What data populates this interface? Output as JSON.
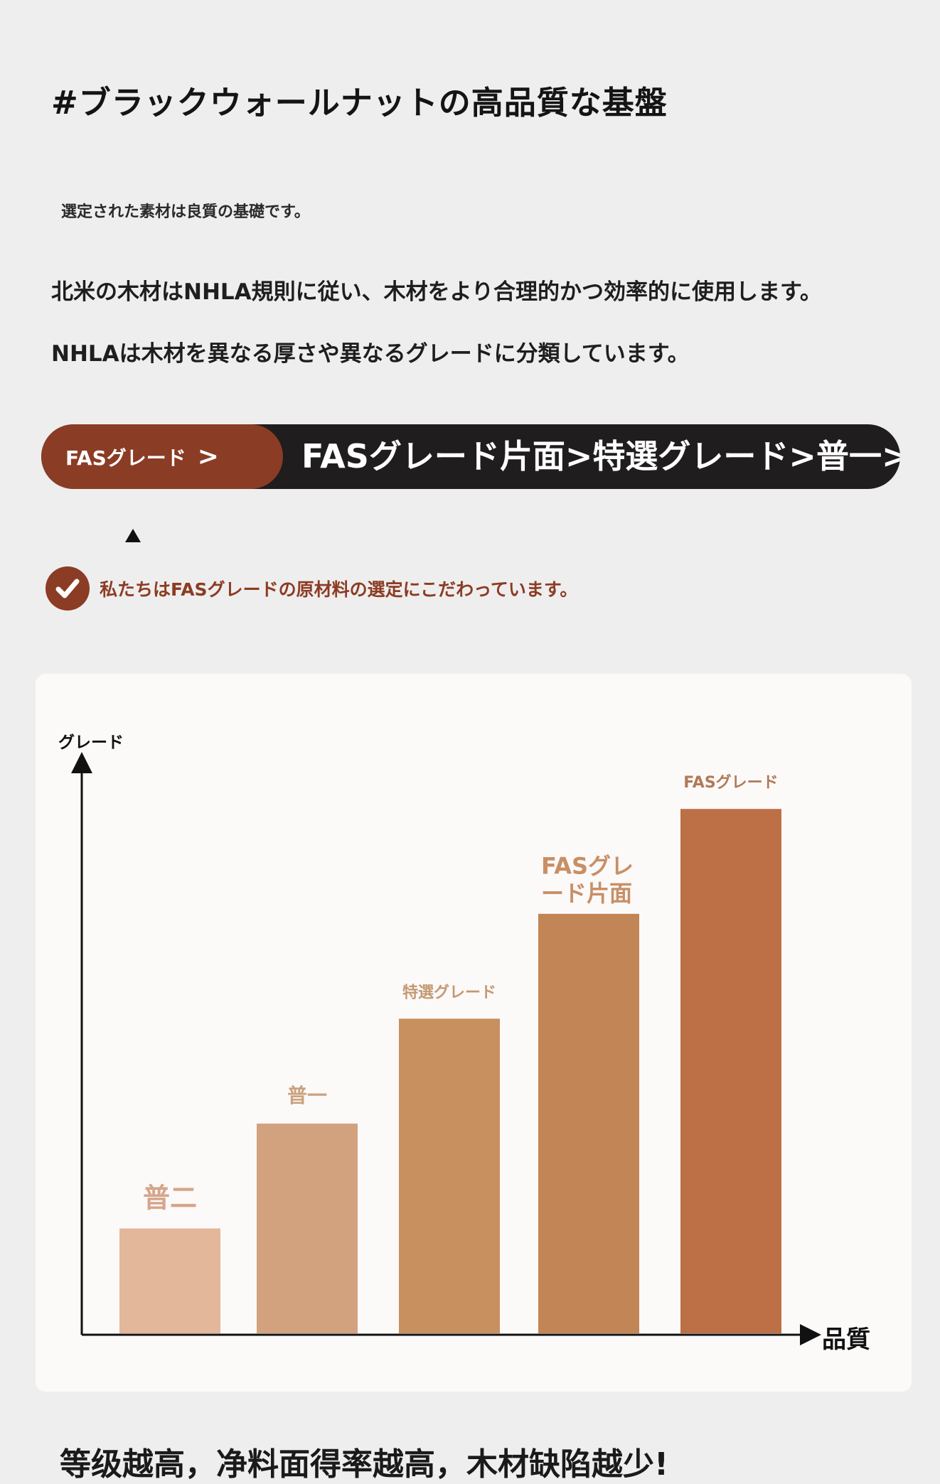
{
  "title": "#ブラックウォールナットの高品質な基盤",
  "subtitle": "選定された素材は良質の基礎です。",
  "paragraphs": [
    "北米の木材はNHLA規則に従い、木材をより合理的かつ効率的に使用します。",
    "NHLAは木材を異なる厚さや異なるグレードに分類しています。"
  ],
  "grade_banner": {
    "pill_label": "FASグレード",
    "pill_arrow": ">",
    "order_text": "FASグレード片面>特選グレード>普一>普"
  },
  "check_note": "私たちはFASグレードの原材料の選定にこだわっています。",
  "chart_data": {
    "type": "bar",
    "ylabel": "グレード",
    "xlabel": "品質",
    "categories": [
      "普二",
      "普一",
      "特選グレード",
      "FASグレード片面",
      "FASグレード"
    ],
    "values": [
      1,
      2,
      3,
      4,
      5
    ],
    "ylim": [
      0,
      6
    ],
    "colors": [
      "#e2b79a",
      "#d2a27e",
      "#c88f5f",
      "#c28556",
      "#bd6f46"
    ],
    "label_colors": [
      "#d4a68a",
      "#caa27f",
      "#c39a72",
      "#c88f66",
      "#b07a57"
    ]
  },
  "bottom_text": "等级越高，净料面得率越高，木材缺陷越少!"
}
